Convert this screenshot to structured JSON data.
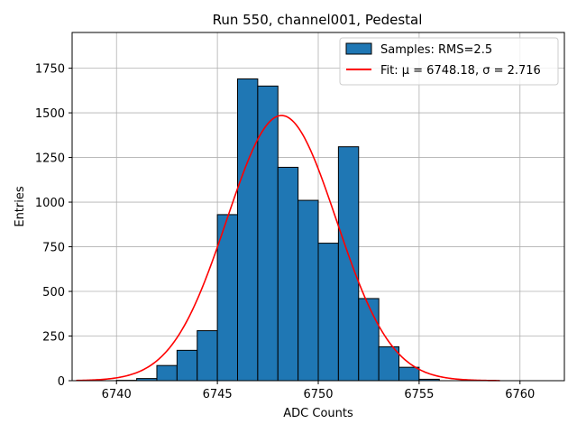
{
  "chart_data": {
    "type": "bar",
    "title": "Run 550, channel001, Pedestal",
    "xlabel": "ADC Counts",
    "ylabel": "Entries",
    "xlim": [
      6737.8,
      6762.2
    ],
    "ylim": [
      0,
      1950
    ],
    "xticks": [
      6740,
      6745,
      6750,
      6755,
      6760
    ],
    "yticks": [
      0,
      250,
      500,
      750,
      1000,
      1250,
      1500,
      1750
    ],
    "grid": true,
    "legend_position": "top-right",
    "histogram": {
      "name": "Samples: RMS=2.5",
      "color": "#1f77b4",
      "edge_color": "#000000",
      "bins": [
        {
          "x0": 6740.0,
          "x1": 6741.0,
          "count": 2
        },
        {
          "x0": 6741.0,
          "x1": 6742.0,
          "count": 12
        },
        {
          "x0": 6742.0,
          "x1": 6743.0,
          "count": 85
        },
        {
          "x0": 6743.0,
          "x1": 6744.0,
          "count": 170
        },
        {
          "x0": 6744.0,
          "x1": 6745.0,
          "count": 280
        },
        {
          "x0": 6745.0,
          "x1": 6746.0,
          "count": 930
        },
        {
          "x0": 6746.0,
          "x1": 6747.0,
          "count": 1690
        },
        {
          "x0": 6747.0,
          "x1": 6748.0,
          "count": 1650
        },
        {
          "x0": 6748.0,
          "x1": 6749.0,
          "count": 1195
        },
        {
          "x0": 6749.0,
          "x1": 6750.0,
          "count": 1010
        },
        {
          "x0": 6750.0,
          "x1": 6751.0,
          "count": 770
        },
        {
          "x0": 6751.0,
          "x1": 6752.0,
          "count": 1310
        },
        {
          "x0": 6752.0,
          "x1": 6753.0,
          "count": 460
        },
        {
          "x0": 6753.0,
          "x1": 6754.0,
          "count": 190
        },
        {
          "x0": 6754.0,
          "x1": 6755.0,
          "count": 75
        },
        {
          "x0": 6755.0,
          "x1": 6756.0,
          "count": 8
        }
      ]
    },
    "fit": {
      "name": "Fit: μ = 6748.18, σ = 2.716",
      "color": "#ff0000",
      "mu": 6748.18,
      "sigma": 2.716,
      "amplitude": 1485,
      "x_range": [
        6738.0,
        6759.0
      ]
    }
  }
}
